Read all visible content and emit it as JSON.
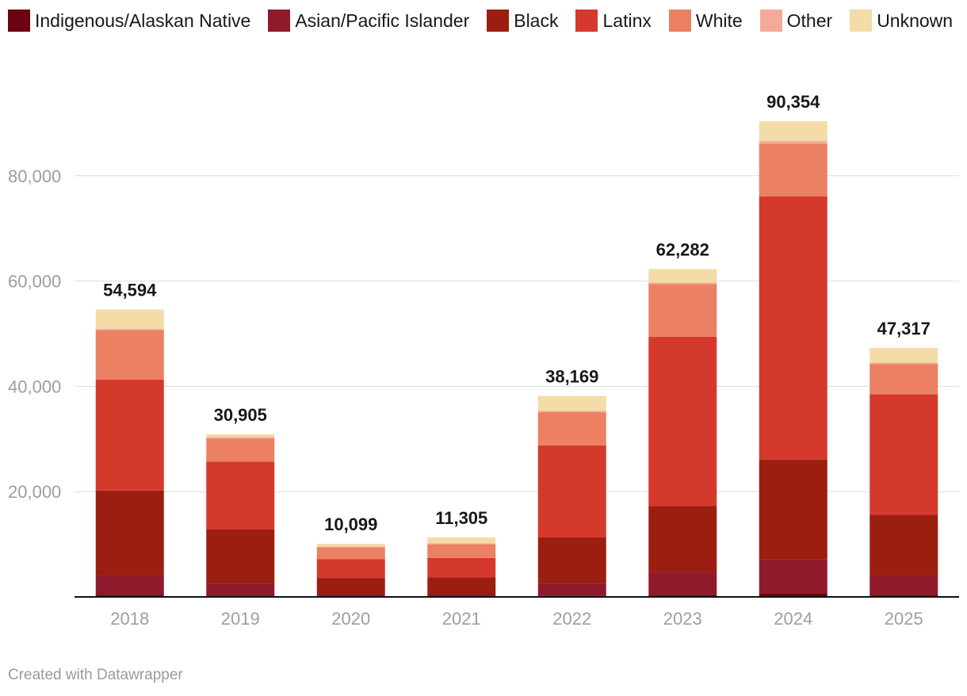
{
  "chart_data": {
    "type": "bar",
    "stacked": true,
    "categories": [
      "2018",
      "2019",
      "2020",
      "2021",
      "2022",
      "2023",
      "2024",
      "2025"
    ],
    "series": [
      {
        "name": "Indigenous/Alaskan Native",
        "color": "#6b0410",
        "values": [
          300,
          150,
          60,
          60,
          160,
          400,
          700,
          300
        ]
      },
      {
        "name": "Asian/Pacific Islander",
        "color": "#8f1a2c",
        "values": [
          3700,
          2350,
          540,
          540,
          2340,
          4200,
          6400,
          3700
        ]
      },
      {
        "name": "Black",
        "color": "#9c1e11",
        "values": [
          16200,
          10300,
          3000,
          3100,
          8800,
          12700,
          19000,
          11600
        ]
      },
      {
        "name": "Latinx",
        "color": "#d4392c",
        "values": [
          21100,
          12900,
          3600,
          3700,
          17500,
          32100,
          50000,
          22900
        ]
      },
      {
        "name": "White",
        "color": "#ec8062",
        "values": [
          9400,
          4400,
          2200,
          2600,
          6300,
          10000,
          10000,
          5700
        ]
      },
      {
        "name": "Other",
        "color": "#f4aa98",
        "values": [
          200,
          255,
          199,
          205,
          269,
          300,
          500,
          300
        ]
      },
      {
        "name": "Unknown",
        "color": "#f3dca8",
        "values": [
          3694,
          550,
          500,
          1100,
          2800,
          2582,
          3754,
          2817
        ]
      }
    ],
    "totals": [
      "54,594",
      "30,905",
      "10,099",
      "11,305",
      "38,169",
      "62,282",
      "90,354",
      "47,317"
    ],
    "yticks": [
      20000,
      40000,
      60000,
      80000
    ],
    "ytick_labels": [
      "20,000",
      "40,000",
      "60,000",
      "80,000"
    ],
    "ylim": [
      0,
      90354
    ],
    "grid": true,
    "legend": "top-left",
    "title": "",
    "xlabel": "",
    "ylabel": ""
  },
  "footer": {
    "credit": "Created with Datawrapper"
  }
}
